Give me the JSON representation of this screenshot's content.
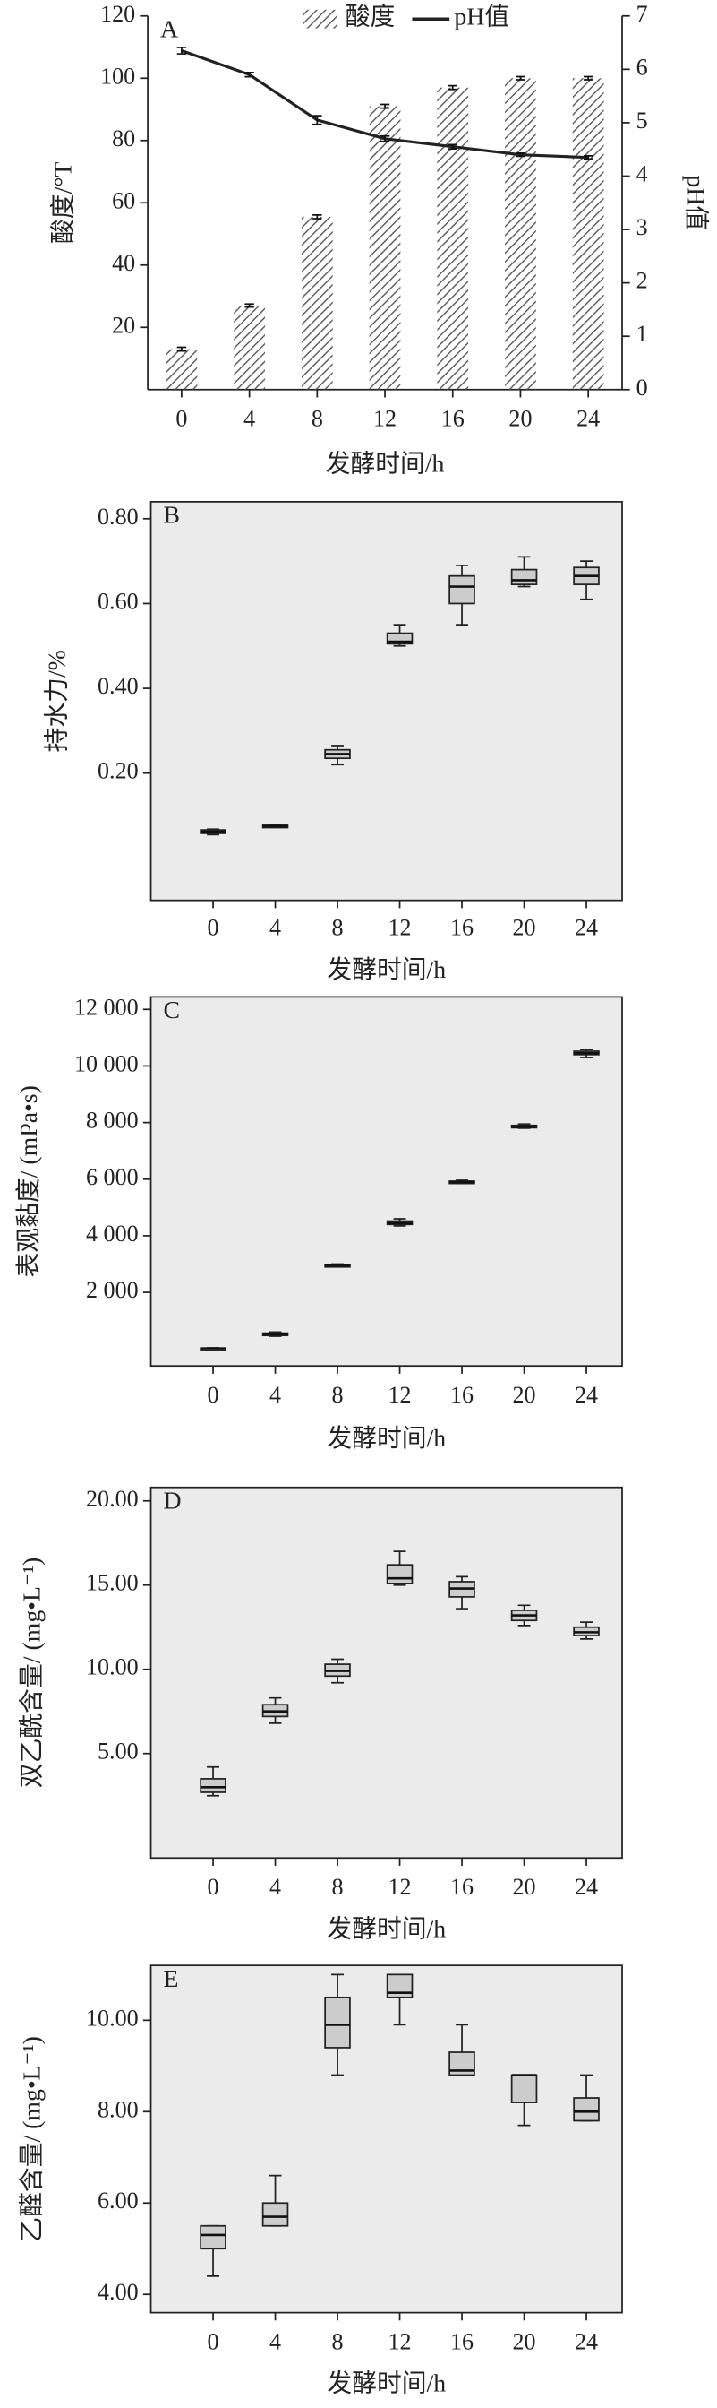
{
  "chart_data": [
    {
      "type": "combo",
      "panel_label": "A",
      "xlabel": "发酵时间/h",
      "ylabel": "酸度/°T",
      "y2label": "pH值",
      "legend": "top",
      "categories": [
        "0",
        "4",
        "8",
        "12",
        "16",
        "20",
        "24"
      ],
      "ylim": [
        0,
        120
      ],
      "yticks": [
        20,
        40,
        60,
        80,
        100,
        120
      ],
      "y2lim": [
        0,
        7
      ],
      "y2ticks": [
        0,
        1,
        2,
        3,
        4,
        5,
        6,
        7
      ],
      "series": [
        {
          "name": "酸度",
          "type": "bar",
          "color": "#555555",
          "values": [
            13,
            27,
            55.5,
            91,
            97,
            100,
            100
          ],
          "errors": [
            0.6,
            0.5,
            0.6,
            0.6,
            0.6,
            0.5,
            0.5
          ]
        },
        {
          "name": "pH值",
          "type": "line",
          "axis": "y2",
          "color": "#222222",
          "values": [
            6.35,
            5.9,
            5.05,
            4.7,
            4.55,
            4.4,
            4.35
          ],
          "errors": [
            0.06,
            0.04,
            0.08,
            0.05,
            0.04,
            0.03,
            0.03
          ]
        }
      ]
    },
    {
      "type": "box",
      "panel_label": "B",
      "xlabel": "发酵时间/h",
      "ylabel": "持水力/%",
      "background": "#ebebeb",
      "color": "#cccccc",
      "categories": [
        "0",
        "4",
        "8",
        "12",
        "16",
        "20",
        "24"
      ],
      "ylim": [
        -0.1,
        0.84
      ],
      "yticks": [
        {
          "value": 0.2,
          "label": "0.20"
        },
        {
          "value": 0.4,
          "label": "0.40"
        },
        {
          "value": 0.6,
          "label": "0.60"
        },
        {
          "value": 0.8,
          "label": "0.80"
        }
      ],
      "stats": {
        "min": [
          0.055,
          0.072,
          0.22,
          0.5,
          0.55,
          0.64,
          0.61
        ],
        "q1": [
          0.058,
          0.073,
          0.235,
          0.505,
          0.6,
          0.645,
          0.645
        ],
        "median": [
          0.062,
          0.075,
          0.245,
          0.51,
          0.64,
          0.655,
          0.665
        ],
        "q3": [
          0.066,
          0.077,
          0.255,
          0.53,
          0.665,
          0.68,
          0.685
        ],
        "max": [
          0.068,
          0.078,
          0.265,
          0.55,
          0.69,
          0.71,
          0.7
        ]
      }
    },
    {
      "type": "box",
      "panel_label": "C",
      "xlabel": "发酵时间/h",
      "ylabel": "表观黏度/ (mPa•s)",
      "background": "#ebebeb",
      "color": "#cccccc",
      "categories": [
        "0",
        "4",
        "8",
        "12",
        "16",
        "20",
        "24"
      ],
      "ylim": [
        -600,
        12440
      ],
      "yticks": [
        {
          "value": 2000,
          "label": "2 000"
        },
        {
          "value": 4000,
          "label": "4 000"
        },
        {
          "value": 6000,
          "label": "6 000"
        },
        {
          "value": 8000,
          "label": "8 000"
        },
        {
          "value": 10000,
          "label": "10 000"
        },
        {
          "value": 12000,
          "label": "12 000"
        }
      ],
      "stats": {
        "min": [
          0,
          450,
          2900,
          4350,
          5850,
          7800,
          10300
        ],
        "q1": [
          10,
          480,
          2920,
          4400,
          5880,
          7830,
          10400
        ],
        "median": [
          20,
          520,
          2950,
          4450,
          5900,
          7860,
          10450
        ],
        "q3": [
          30,
          560,
          2980,
          4520,
          5930,
          7900,
          10520
        ],
        "max": [
          40,
          600,
          3000,
          4600,
          5960,
          7950,
          10580
        ]
      }
    },
    {
      "type": "box",
      "panel_label": "D",
      "xlabel": "发酵时间/h",
      "ylabel": "双乙酰含量/ (mg•L⁻¹)",
      "background": "#ebebeb",
      "color": "#cccccc",
      "categories": [
        "0",
        "4",
        "8",
        "12",
        "16",
        "20",
        "24"
      ],
      "ylim": [
        -1.2,
        20.8
      ],
      "yticks": [
        {
          "value": 5,
          "label": "5.00"
        },
        {
          "value": 10,
          "label": "10.00"
        },
        {
          "value": 15,
          "label": "15.00"
        },
        {
          "value": 20,
          "label": "20.00"
        }
      ],
      "stats": {
        "min": [
          2.5,
          6.8,
          9.2,
          15.0,
          13.6,
          12.6,
          11.8
        ],
        "q1": [
          2.7,
          7.2,
          9.6,
          15.1,
          14.3,
          12.9,
          12.0
        ],
        "median": [
          3.0,
          7.5,
          9.9,
          15.4,
          14.8,
          13.2,
          12.2
        ],
        "q3": [
          3.5,
          7.9,
          10.3,
          16.2,
          15.2,
          13.5,
          12.5
        ],
        "max": [
          4.2,
          8.3,
          10.6,
          17.0,
          15.5,
          13.8,
          12.8
        ]
      }
    },
    {
      "type": "box",
      "panel_label": "E",
      "xlabel": "发酵时间/h",
      "ylabel": "乙醛含量/ (mg•L⁻¹)",
      "background": "#ebebeb",
      "color": "#cccccc",
      "categories": [
        "0",
        "4",
        "8",
        "12",
        "16",
        "20",
        "24"
      ],
      "ylim": [
        3.6,
        11.2
      ],
      "yticks": [
        {
          "value": 4,
          "label": "4.00"
        },
        {
          "value": 6,
          "label": "6.00"
        },
        {
          "value": 8,
          "label": "8.00"
        },
        {
          "value": 10,
          "label": "10.00"
        }
      ],
      "stats": {
        "min": [
          4.4,
          5.5,
          8.8,
          9.9,
          8.8,
          7.7,
          7.8
        ],
        "q1": [
          5.0,
          5.5,
          9.4,
          10.5,
          8.8,
          8.2,
          7.8
        ],
        "median": [
          5.3,
          5.7,
          9.9,
          10.6,
          8.9,
          8.8,
          8.0
        ],
        "q3": [
          5.5,
          6.0,
          10.5,
          11.0,
          9.3,
          8.8,
          8.3
        ],
        "max": [
          5.5,
          6.6,
          11.0,
          11.0,
          9.9,
          8.8,
          8.8
        ]
      }
    }
  ]
}
